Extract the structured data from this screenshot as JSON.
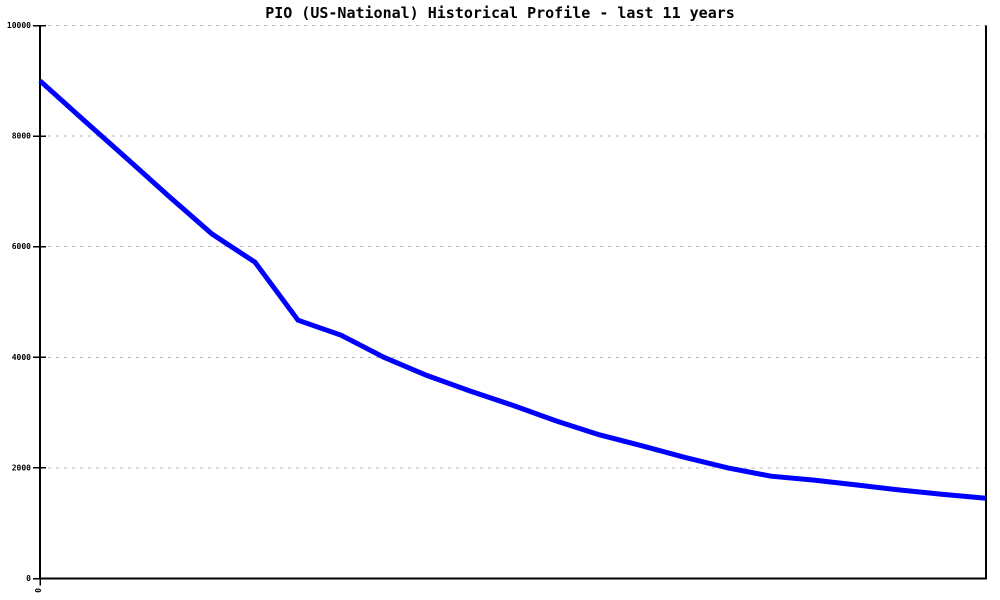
{
  "title": "PIO (US-National) Historical Profile - last 11 years",
  "colors": {
    "line": "#0000ff",
    "grid": "#b8b8b8",
    "axis": "#000000",
    "text": "#000000",
    "background": "#ffffff"
  },
  "chart_data": {
    "type": "line",
    "title": "PIO (US-National) Historical Profile - last 11 years",
    "xlabel": "",
    "ylabel": "",
    "xlim": [
      0,
      11
    ],
    "ylim": [
      0,
      10000
    ],
    "xticks": [
      0
    ],
    "yticks": [
      0,
      2000,
      4000,
      6000,
      8000,
      10000
    ],
    "grid": "horizontal dashed gridlines at non-zero y ticks",
    "legend_position": "none",
    "x_unit": "years",
    "x": [
      0,
      0.5,
      1,
      1.5,
      2,
      2.5,
      3,
      3.5,
      4,
      4.5,
      5,
      5.5,
      6,
      6.5,
      7,
      7.5,
      8,
      8.5,
      9,
      9.5,
      10,
      10.5,
      11
    ],
    "series": [
      {
        "name": "PIO (US-National)",
        "color": "#0000ff",
        "values": [
          9000,
          8300,
          7610,
          6910,
          6230,
          5720,
          4670,
          4400,
          4000,
          3670,
          3390,
          3130,
          2850,
          2600,
          2400,
          2190,
          2000,
          1850,
          1780,
          1690,
          1600,
          1520,
          1450
        ]
      }
    ]
  }
}
